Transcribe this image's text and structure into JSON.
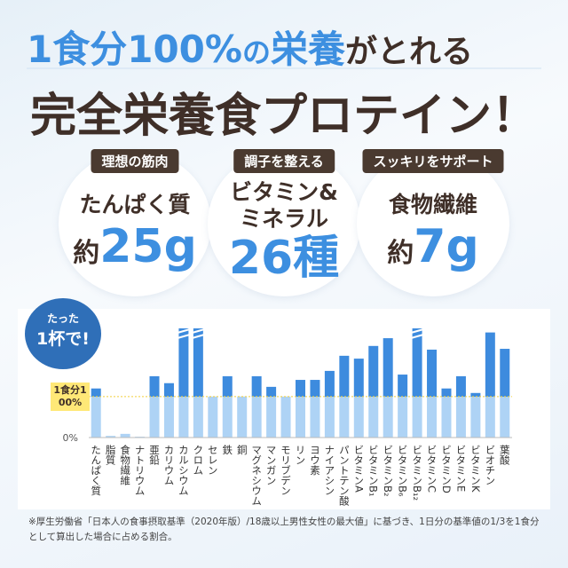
{
  "headline": {
    "part1": "1食分100%",
    "part2": "の",
    "part3": "栄養",
    "part4": "がとれる",
    "line2": "完全栄養食プロテイン！"
  },
  "features": [
    {
      "tag": "理想の筋肉",
      "lines": [
        "たんぱく質"
      ],
      "prefix": "約",
      "amount": "25g"
    },
    {
      "tag": "調子を整える",
      "lines": [
        "ビタミン&",
        "ミネラル"
      ],
      "amount": "26種"
    },
    {
      "tag": "スッキリをサポート",
      "lines": [
        "食物繊維"
      ],
      "prefix": "約",
      "amount": "7g"
    }
  ],
  "badge": {
    "line1": "たった",
    "line2": "1杯で!"
  },
  "chart_data": {
    "type": "bar",
    "categories": [
      "たんぱく質",
      "脂質",
      "食物繊維",
      "ナトリウム",
      "亜鉛",
      "カリウム",
      "カルシウム",
      "クロム",
      "セレン",
      "鉄",
      "銅",
      "マグネシウム",
      "マンガン",
      "モリブデン",
      "リン",
      "ヨウ素",
      "ナイアシン",
      "パントテン酸",
      "ビタミンA",
      "ビタミンB₁",
      "ビタミンB₂",
      "ビタミンB₆",
      "ビタミンB₁₂",
      "ビタミンC",
      "ビタミンD",
      "ビタミンE",
      "ビタミンK",
      "ビオチン",
      "葉酸"
    ],
    "values": [
      120,
      4,
      9,
      2,
      150,
      133,
      267,
      267,
      100,
      150,
      100,
      150,
      124,
      100,
      141,
      141,
      163,
      200,
      193,
      224,
      243,
      154,
      267,
      215,
      120,
      150,
      109,
      257,
      217
    ],
    "colors": {
      "below": "#aed3f5",
      "above": "#3d8bde"
    },
    "ylim": [
      0,
      267
    ],
    "yticks": [
      {
        "value": 0,
        "label": "0%"
      },
      {
        "value": 100,
        "label": "1食分100%"
      }
    ]
  },
  "footnote": "※厚生労働省「日本人の食事摂取基準（2020年版）/18歳以上男性女性の最大値」に基づき、1日分の基準値の1/3を1食分として算出した場合に占める割合。"
}
